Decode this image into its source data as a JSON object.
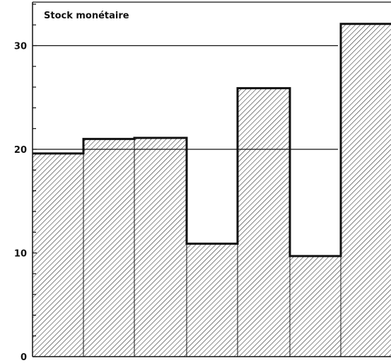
{
  "chart_data": {
    "type": "bar",
    "title": "Stock monétaire",
    "xlabel": "",
    "ylabel": "",
    "ylim": [
      0,
      34
    ],
    "yticks": [
      0,
      10,
      20,
      30
    ],
    "reference_lines": [
      20,
      30
    ],
    "categories": [
      "",
      "",
      "",
      "",
      "",
      "",
      ""
    ],
    "values": [
      19.6,
      21.0,
      21.1,
      10.9,
      25.9,
      9.7,
      32.1
    ],
    "fill": "diagonal-hatch",
    "colors": {
      "ink": "#111111",
      "background": "#ffffff"
    }
  }
}
